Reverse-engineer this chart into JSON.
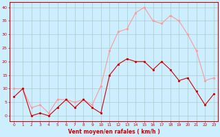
{
  "hours": [
    0,
    1,
    2,
    3,
    4,
    5,
    6,
    7,
    8,
    9,
    10,
    11,
    12,
    13,
    14,
    15,
    16,
    17,
    18,
    19,
    20,
    21,
    22,
    23
  ],
  "vent_moyen": [
    7,
    10,
    0,
    1,
    0,
    3,
    6,
    3,
    6,
    3,
    1,
    15,
    19,
    21,
    20,
    20,
    17,
    20,
    17,
    13,
    14,
    9,
    4,
    8
  ],
  "rafales": [
    10,
    10,
    3,
    4,
    1,
    6,
    6,
    5,
    6,
    4,
    11,
    24,
    31,
    32,
    38,
    40,
    35,
    34,
    37,
    35,
    30,
    24,
    13,
    14
  ],
  "bg_color": "#cceeff",
  "grid_color": "#aacccc",
  "line_moyen_color": "#cc0000",
  "line_rafales_color": "#ff9999",
  "xlabel": "Vent moyen/en rafales ( km/h )",
  "ylim": [
    -2,
    42
  ],
  "yticks": [
    0,
    5,
    10,
    15,
    20,
    25,
    30,
    35,
    40
  ],
  "xlim": [
    -0.5,
    23.5
  ]
}
